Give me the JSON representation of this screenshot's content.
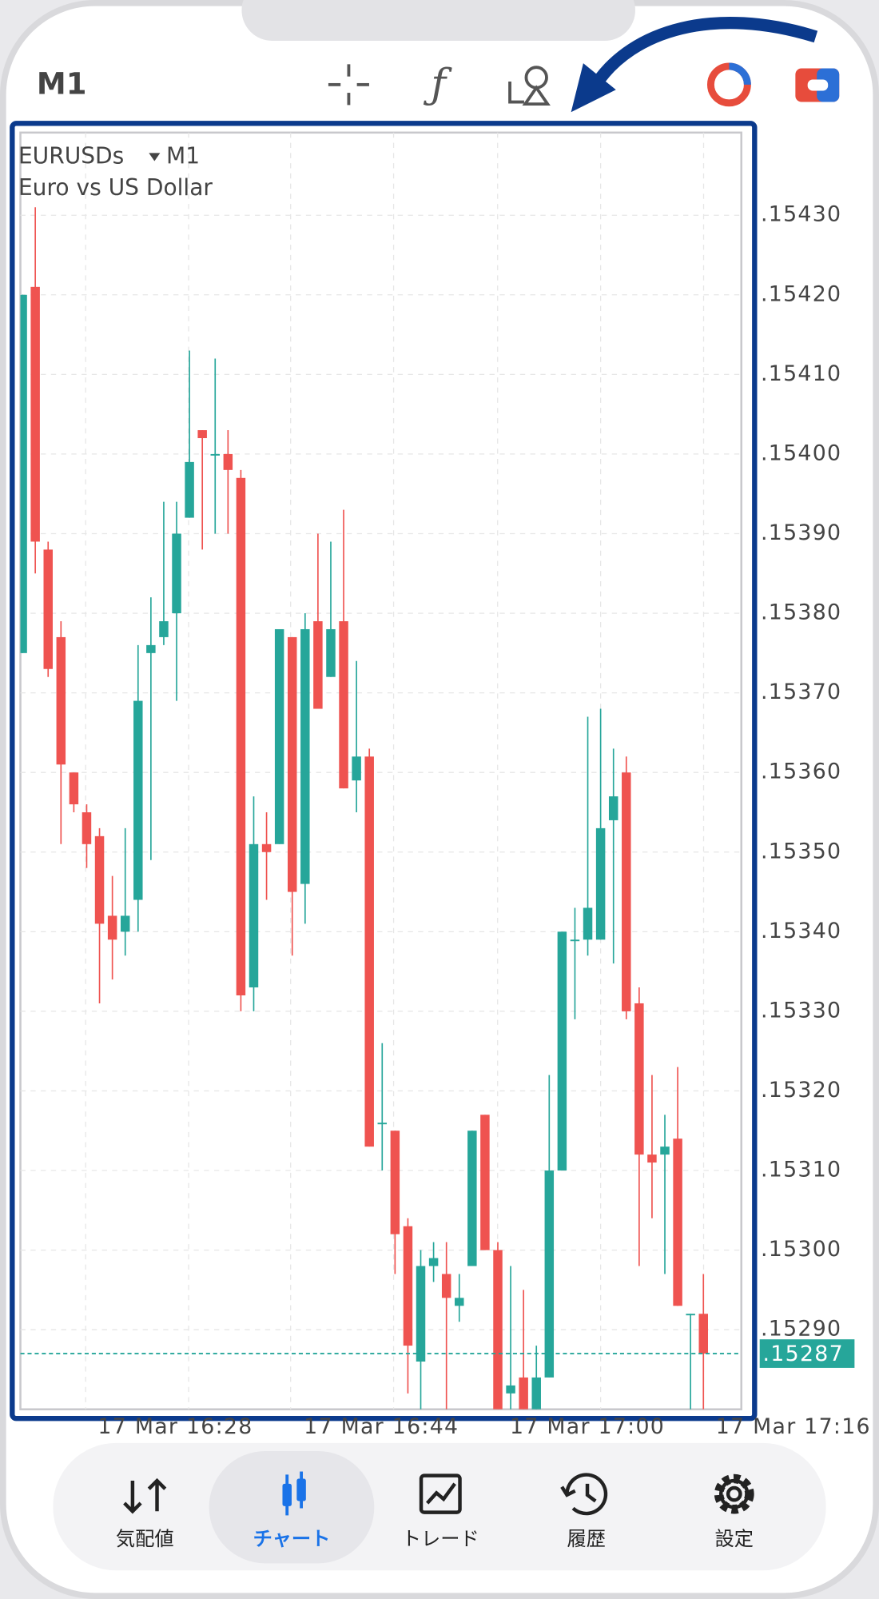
{
  "chart_data": {
    "type": "candlestick",
    "symbol": "EURUSDs",
    "timeframe": "M1",
    "description": "Euro vs US Dollar",
    "up_color": "#26a69a",
    "down_color": "#ef5350",
    "open": [
      1.15375,
      1.15421,
      1.15388,
      1.15377,
      1.1536,
      1.15355,
      1.15352,
      1.15342,
      1.1534,
      1.15344,
      1.15375,
      1.15377,
      1.1538,
      1.15392,
      1.15403,
      1.154,
      1.154,
      1.15397,
      1.15333,
      1.15351,
      1.15351,
      1.15377,
      1.15346,
      1.15379,
      1.15372,
      1.15379,
      1.15359,
      1.15362,
      1.15316,
      1.15315,
      1.15303,
      1.15286,
      1.15298,
      1.15297,
      1.15293,
      1.15298,
      1.15317,
      1.153,
      1.15282,
      1.15284,
      1.1528,
      1.15284,
      1.1531,
      1.15339,
      1.15339,
      1.15339,
      1.15354,
      1.1536,
      1.15331,
      1.15312,
      1.15312,
      1.15314,
      1.15292,
      1.15292
    ],
    "high": [
      1.1542,
      1.15431,
      1.15389,
      1.15379,
      1.1536,
      1.15356,
      1.15353,
      1.15347,
      1.15353,
      1.15376,
      1.15382,
      1.15394,
      1.15394,
      1.15413,
      1.15403,
      1.15412,
      1.15403,
      1.15398,
      1.15357,
      1.15355,
      1.15378,
      1.15377,
      1.1538,
      1.1539,
      1.15389,
      1.15393,
      1.15374,
      1.15363,
      1.15326,
      1.15315,
      1.15304,
      1.153,
      1.15301,
      1.15301,
      1.15297,
      1.15315,
      1.15317,
      1.15301,
      1.15298,
      1.15295,
      1.15288,
      1.15322,
      1.1534,
      1.15343,
      1.15367,
      1.15368,
      1.15363,
      1.15362,
      1.15333,
      1.15322,
      1.15317,
      1.15323,
      1.15292,
      1.15297
    ],
    "low": [
      1.15375,
      1.15385,
      1.15372,
      1.15351,
      1.15355,
      1.15348,
      1.15331,
      1.15334,
      1.15337,
      1.1534,
      1.15349,
      1.15376,
      1.15369,
      1.15392,
      1.15388,
      1.1539,
      1.1539,
      1.1533,
      1.1533,
      1.15344,
      1.15351,
      1.15337,
      1.15341,
      1.15368,
      1.15372,
      1.15358,
      1.15355,
      1.15313,
      1.1531,
      1.15297,
      1.15282,
      1.1528,
      1.15296,
      1.1528,
      1.15291,
      1.15298,
      1.153,
      1.1528,
      1.1528,
      1.1528,
      1.1528,
      1.15284,
      1.1531,
      1.15329,
      1.15337,
      1.15339,
      1.15336,
      1.15329,
      1.15298,
      1.15304,
      1.15297,
      1.15293,
      1.1528,
      1.1528
    ],
    "close": [
      1.1542,
      1.15389,
      1.15373,
      1.15361,
      1.15356,
      1.15351,
      1.15341,
      1.15339,
      1.15342,
      1.15369,
      1.15376,
      1.15379,
      1.1539,
      1.15399,
      1.15402,
      1.154,
      1.15398,
      1.15332,
      1.15351,
      1.1535,
      1.15378,
      1.15345,
      1.15378,
      1.15368,
      1.15378,
      1.15358,
      1.15362,
      1.15313,
      1.15316,
      1.15302,
      1.15288,
      1.15298,
      1.15299,
      1.15294,
      1.15294,
      1.15315,
      1.153,
      1.1528,
      1.15283,
      1.1528,
      1.15284,
      1.1531,
      1.1534,
      1.15339,
      1.15343,
      1.15353,
      1.15357,
      1.1533,
      1.15312,
      1.15311,
      1.15313,
      1.15293,
      1.15292,
      1.15287
    ],
    "ylim": [
      1.1528,
      1.1544
    ],
    "yticks": [
      {
        "value": 1.1543,
        "label": ".15430"
      },
      {
        "value": 1.1542,
        "label": ".15420"
      },
      {
        "value": 1.1541,
        "label": ".15410"
      },
      {
        "value": 1.154,
        "label": ".15400"
      },
      {
        "value": 1.1539,
        "label": ".15390"
      },
      {
        "value": 1.1538,
        "label": ".15380"
      },
      {
        "value": 1.1537,
        "label": ".15370"
      },
      {
        "value": 1.1536,
        "label": ".15360"
      },
      {
        "value": 1.1535,
        "label": ".15350"
      },
      {
        "value": 1.1534,
        "label": ".15340"
      },
      {
        "value": 1.1533,
        "label": ".15330"
      },
      {
        "value": 1.1532,
        "label": ".15320"
      },
      {
        "value": 1.1531,
        "label": ".15310"
      },
      {
        "value": 1.153,
        "label": ".15300"
      },
      {
        "value": 1.1529,
        "label": ".15290"
      }
    ],
    "xtick_labels": [
      "17 Mar 16:28",
      "17 Mar 16:44",
      "17 Mar 17:00",
      "17 Mar 17:16"
    ],
    "last_price": {
      "value": 1.15287,
      "label": ".15287"
    }
  },
  "nav": [
    {
      "label": "気配値"
    },
    {
      "label": "チャート"
    },
    {
      "label": "トレード"
    },
    {
      "label": "履歴"
    },
    {
      "label": "設定"
    }
  ]
}
